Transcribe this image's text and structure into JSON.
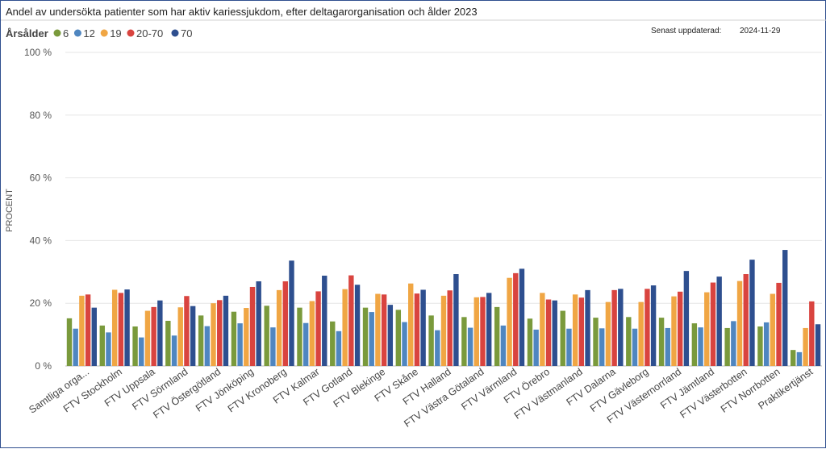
{
  "chart_data": {
    "type": "bar",
    "title": "Andel av undersökta patienter som har aktiv kariessjukdom, efter deltagarorganisation och ålder 2023",
    "legend_title": "Årsålder",
    "legend_position": "top-left",
    "updated_label": "Senast uppdaterad:",
    "updated_date": "2024-11-29",
    "ylabel": "PROCENT",
    "ylim": [
      0,
      100
    ],
    "yticks": [
      {
        "value": 0,
        "label": "0 %"
      },
      {
        "value": 20,
        "label": "20 %"
      },
      {
        "value": 40,
        "label": "40 %"
      },
      {
        "value": 60,
        "label": "60 %"
      },
      {
        "value": 80,
        "label": "80 %"
      },
      {
        "value": 100,
        "label": "100 %"
      }
    ],
    "grid": true,
    "categories": [
      "Samtliga orga...",
      "FTV Stockholm",
      "FTV Uppsala",
      "FTV Sörmland",
      "FTV Östergötland",
      "FTV Jönköping",
      "FTV Kronoberg",
      "FTV Kalmar",
      "FTV Gotland",
      "FTV Blekinge",
      "FTV Skåne",
      "FTV Halland",
      "FTV Västra Götaland",
      "FTV Värmland",
      "FTV Örebro",
      "FTV Västmanland",
      "FTV Dalarna",
      "FTV Gävleborg",
      "FTV Västernorrland",
      "FTV Jämtland",
      "FTV Västerbotten",
      "FTV Norrbotten",
      "Praktikertjänst"
    ],
    "series": [
      {
        "name": "6",
        "color": "#7a9a3c",
        "values": [
          15.2,
          12.9,
          12.6,
          14.4,
          16.1,
          17.3,
          19.2,
          18.6,
          14.2,
          18.6,
          17.9,
          16.1,
          15.6,
          18.8,
          15.1,
          17.6,
          15.4,
          15.6,
          15.4,
          13.6,
          12.1,
          12.6,
          5.1
        ]
      },
      {
        "name": "12",
        "color": "#4f86c0",
        "values": [
          11.9,
          10.7,
          9.1,
          9.7,
          12.7,
          13.6,
          12.3,
          13.7,
          11.1,
          17.2,
          14.0,
          11.4,
          12.2,
          12.9,
          11.6,
          11.9,
          12.0,
          11.9,
          12.1,
          12.3,
          14.3,
          13.9,
          4.4
        ]
      },
      {
        "name": "19",
        "color": "#f0a644",
        "values": [
          22.4,
          24.3,
          17.6,
          18.7,
          20.0,
          18.5,
          24.2,
          20.7,
          24.5,
          23.0,
          26.3,
          22.4,
          21.9,
          28.1,
          23.3,
          22.8,
          20.4,
          20.4,
          22.2,
          23.5,
          27.1,
          23.0,
          12.1
        ]
      },
      {
        "name": "20-70",
        "color": "#d9443f",
        "values": [
          22.8,
          23.3,
          18.8,
          22.3,
          21.0,
          25.2,
          27.0,
          23.8,
          28.9,
          22.8,
          23.1,
          24.1,
          22.0,
          29.6,
          21.2,
          21.8,
          24.2,
          24.6,
          23.7,
          26.6,
          29.3,
          26.5,
          20.6
        ]
      },
      {
        "name": "70",
        "color": "#2e4f8f",
        "values": [
          18.6,
          24.4,
          20.9,
          19.1,
          22.4,
          27.0,
          33.6,
          28.8,
          25.9,
          19.5,
          24.3,
          29.3,
          23.3,
          31.0,
          20.9,
          24.2,
          24.6,
          25.7,
          30.3,
          28.5,
          33.9,
          37.0,
          13.3
        ]
      }
    ]
  }
}
